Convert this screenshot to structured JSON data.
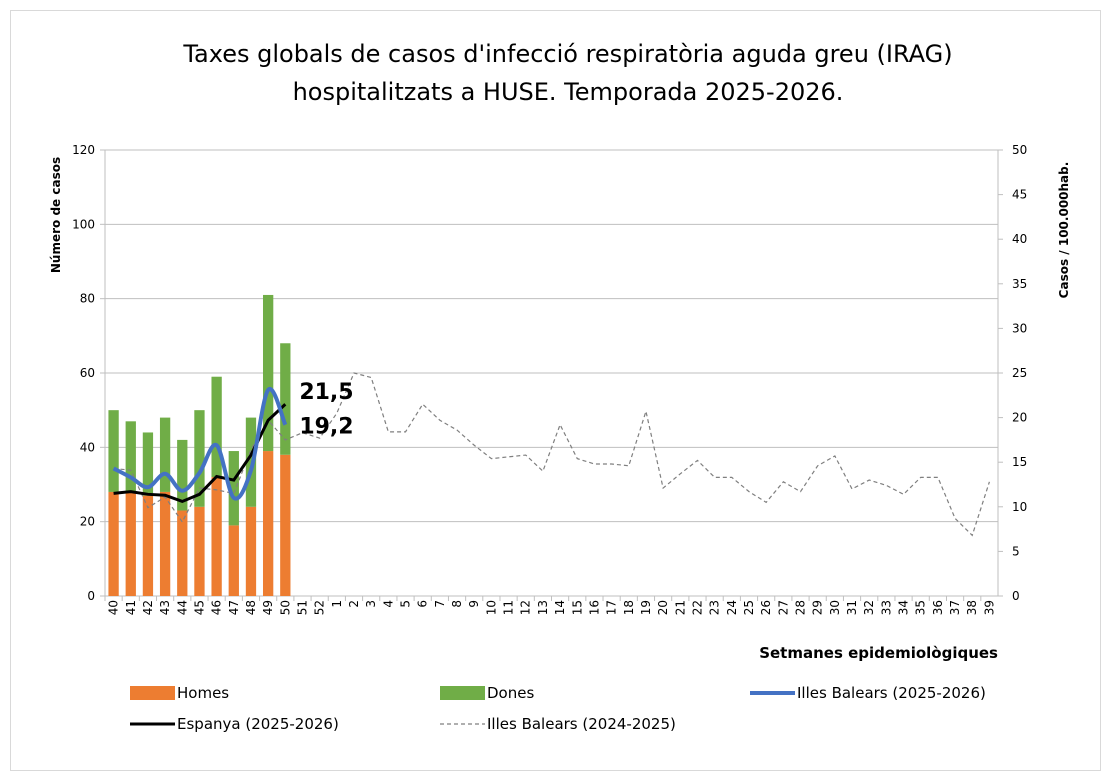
{
  "chart_data": {
    "type": "combo",
    "title": [
      "Taxes globals  de casos d'infecció respiratòria aguda greu (IRAG)",
      "hospitalitzats a HUSE. Temporada 2025-2026."
    ],
    "y_label": "Número de casos",
    "y2_label": "Casos / 100.000hab.",
    "x_label": "Setmanes epidemiològiques",
    "categories": [
      "40",
      "41",
      "42",
      "43",
      "44",
      "45",
      "46",
      "47",
      "48",
      "49",
      "50",
      "51",
      "52",
      "1",
      "2",
      "3",
      "4",
      "5",
      "6",
      "7",
      "8",
      "9",
      "10",
      "11",
      "12",
      "13",
      "14",
      "15",
      "16",
      "17",
      "18",
      "19",
      "20",
      "21",
      "22",
      "23",
      "24",
      "25",
      "26",
      "27",
      "28",
      "29",
      "30",
      "31",
      "32",
      "33",
      "34",
      "35",
      "36",
      "37",
      "38",
      "39"
    ],
    "ylim": [
      0,
      120
    ],
    "yticks": [
      0,
      20,
      40,
      60,
      80,
      100,
      120
    ],
    "y2lim": [
      0,
      50
    ],
    "y2ticks": [
      0,
      5,
      10,
      15,
      20,
      25,
      30,
      35,
      40,
      45,
      50
    ],
    "grid": true,
    "series": [
      {
        "name": "Homes",
        "type": "bar",
        "color": "#ed7d31",
        "values": [
          28,
          28,
          27,
          28,
          23,
          24,
          32,
          19,
          24,
          39,
          38,
          null,
          null,
          null,
          null,
          null,
          null,
          null,
          null,
          null,
          null,
          null,
          null,
          null,
          null,
          null,
          null,
          null,
          null,
          null,
          null,
          null,
          null,
          null,
          null,
          null,
          null,
          null,
          null,
          null,
          null,
          null,
          null,
          null,
          null,
          null,
          null,
          null,
          null,
          null,
          null,
          null
        ]
      },
      {
        "name": "Dones",
        "type": "bar",
        "color": "#70ad47",
        "values": [
          22,
          19,
          17,
          20,
          19,
          26,
          27,
          20,
          24,
          42,
          30,
          null,
          null,
          null,
          null,
          null,
          null,
          null,
          null,
          null,
          null,
          null,
          null,
          null,
          null,
          null,
          null,
          null,
          null,
          null,
          null,
          null,
          null,
          null,
          null,
          null,
          null,
          null,
          null,
          null,
          null,
          null,
          null,
          null,
          null,
          null,
          null,
          null,
          null,
          null,
          null,
          null
        ]
      },
      {
        "name": "Illes Balears (2025-2026)",
        "type": "line",
        "smooth": true,
        "axis": "y2",
        "color": "#4472c4",
        "values": [
          14.3,
          13.3,
          12.2,
          13.7,
          11.8,
          13.8,
          16.9,
          11.0,
          14.1,
          23.1,
          19.2,
          null,
          null,
          null,
          null,
          null,
          null,
          null,
          null,
          null,
          null,
          null,
          null,
          null,
          null,
          null,
          null,
          null,
          null,
          null,
          null,
          null,
          null,
          null,
          null,
          null,
          null,
          null,
          null,
          null,
          null,
          null,
          null,
          null,
          null,
          null,
          null,
          null,
          null,
          null,
          null,
          null
        ],
        "value_labels": [
          null,
          null,
          null,
          null,
          null,
          null,
          null,
          null,
          null,
          null,
          "19,2",
          null,
          null,
          null,
          null,
          null,
          null,
          null,
          null,
          null,
          null,
          null,
          null,
          null,
          null,
          null,
          null,
          null,
          null,
          null,
          null,
          null,
          null,
          null,
          null,
          null,
          null,
          null,
          null,
          null,
          null,
          null,
          null,
          null,
          null,
          null,
          null,
          null,
          null,
          null,
          null,
          null
        ]
      },
      {
        "name": "Espanya (2025-2026)",
        "type": "line",
        "axis": "y2",
        "color": "#000000",
        "values": [
          11.5,
          11.7,
          11.4,
          11.3,
          10.6,
          11.4,
          13.4,
          13.0,
          15.8,
          19.7,
          21.5,
          null,
          null,
          null,
          null,
          null,
          null,
          null,
          null,
          null,
          null,
          null,
          null,
          null,
          null,
          null,
          null,
          null,
          null,
          null,
          null,
          null,
          null,
          null,
          null,
          null,
          null,
          null,
          null,
          null,
          null,
          null,
          null,
          null,
          null,
          null,
          null,
          null,
          null,
          null,
          null,
          null
        ],
        "value_labels": [
          null,
          null,
          null,
          null,
          null,
          null,
          null,
          null,
          null,
          null,
          "21,5",
          null,
          null,
          null,
          null,
          null,
          null,
          null,
          null,
          null,
          null,
          null,
          null,
          null,
          null,
          null,
          null,
          null,
          null,
          null,
          null,
          null,
          null,
          null,
          null,
          null,
          null,
          null,
          null,
          null,
          null,
          null,
          null,
          null,
          null,
          null,
          null,
          null,
          null,
          null,
          null,
          null
        ]
      },
      {
        "name": "Illes Balears (2024-2025)",
        "type": "line",
        "dashed": true,
        "axis": "y2",
        "color": "#7f7f7f",
        "values": [
          14.3,
          14.1,
          9.9,
          11.1,
          8.3,
          12.1,
          11.9,
          11.5,
          16.4,
          19.7,
          17.5,
          18.3,
          17.7,
          20.5,
          25.0,
          24.5,
          18.4,
          18.4,
          21.5,
          19.7,
          18.6,
          16.9,
          15.4,
          15.6,
          15.8,
          14.0,
          19.2,
          15.4,
          14.8,
          14.8,
          14.6,
          20.7,
          12.1,
          13.7,
          15.2,
          13.3,
          13.3,
          11.7,
          10.5,
          12.8,
          11.7,
          14.6,
          15.7,
          12.0,
          13.0,
          12.4,
          11.4,
          13.3,
          13.3,
          8.7,
          6.8,
          12.8
        ]
      }
    ]
  }
}
